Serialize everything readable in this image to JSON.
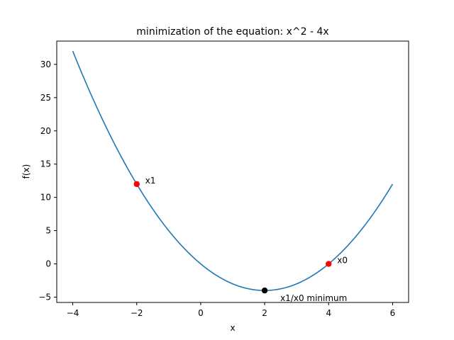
{
  "chart_data": {
    "type": "line",
    "title": "minimization of the equation: x^2 - 4x",
    "xlabel": "x",
    "ylabel": "f(x)",
    "xlim": [
      -4.5,
      6.5
    ],
    "ylim": [
      -5.8,
      33.5
    ],
    "xticks": [
      -4,
      -2,
      0,
      2,
      4,
      6
    ],
    "yticks": [
      -5,
      0,
      5,
      10,
      15,
      20,
      25,
      30
    ],
    "grid": false,
    "series": [
      {
        "function": "x^2 - 4x",
        "x_range": [
          -4,
          6
        ],
        "color": "#1f77b4"
      }
    ],
    "points": [
      {
        "x": -2,
        "y": 12,
        "label": "x1",
        "color": "#ff0000"
      },
      {
        "x": 4,
        "y": 0,
        "label": "x0",
        "color": "#ff0000"
      },
      {
        "x": 2,
        "y": -4,
        "label": "x1/x0 minimum",
        "color": "#000000"
      }
    ]
  }
}
